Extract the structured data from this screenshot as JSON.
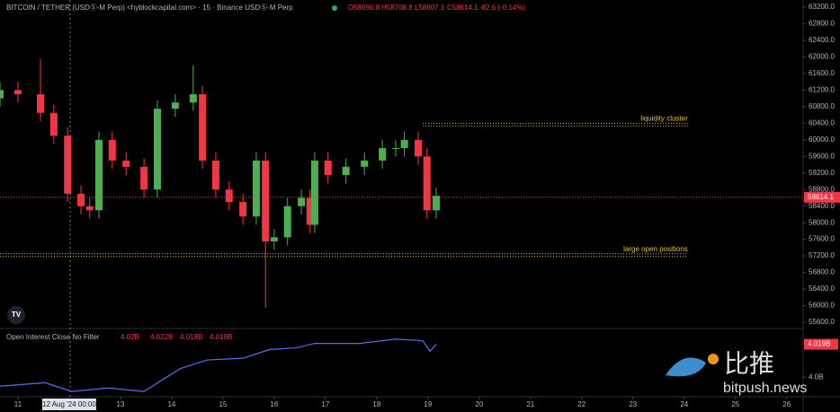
{
  "header": {
    "title": "BITCOIN / TETHER (USDⓈ-M Perp) <hyblockcapital.com> · 15 · Binance USDⓈ-M Perp",
    "open": "O58696.8",
    "high": "H58708.8",
    "low": "L58607.1",
    "close": "C58614.1",
    "change": "-82.6 (-0.14%)"
  },
  "watermark": {
    "cn": "比推",
    "site": "bitpush.news"
  },
  "chart_data": [
    {
      "type": "candlestick",
      "up_color": "#4caf50",
      "down_color": "#f23645",
      "x": [
        10.65,
        11.0,
        11.44,
        11.7,
        11.97,
        12.23,
        12.4,
        12.58,
        12.84,
        13.11,
        13.46,
        13.72,
        14.07,
        14.42,
        14.6,
        14.86,
        15.12,
        15.39,
        15.65,
        15.83,
        16.0,
        16.26,
        16.53,
        16.7,
        16.79,
        17.05,
        17.4,
        17.76,
        18.11,
        18.37,
        18.54,
        18.81,
        18.98,
        19.16
      ],
      "open": [
        61000,
        61200,
        61100,
        60650,
        60100,
        58700,
        58400,
        58300,
        60000,
        59500,
        59350,
        58800,
        60750,
        60900,
        61100,
        59500,
        58800,
        58500,
        58150,
        59500,
        57550,
        57650,
        58400,
        58600,
        57950,
        59500,
        59150,
        59350,
        59500,
        59800,
        59800,
        60000,
        59600,
        58300
      ],
      "high": [
        61400,
        61400,
        61950,
        60850,
        60300,
        58900,
        58600,
        60200,
        60200,
        59700,
        59550,
        60950,
        61100,
        61800,
        61300,
        59700,
        59000,
        58700,
        59700,
        59700,
        57850,
        58600,
        58800,
        58800,
        59700,
        59700,
        59550,
        59700,
        60000,
        60000,
        60200,
        60200,
        59800,
        58850
      ],
      "low": [
        60800,
        60900,
        60450,
        59900,
        58500,
        58200,
        58100,
        58100,
        59300,
        59150,
        58600,
        58600,
        60550,
        60700,
        59300,
        58600,
        58300,
        57950,
        57950,
        55950,
        57350,
        57450,
        58200,
        57750,
        57750,
        58950,
        58950,
        59150,
        59300,
        59600,
        59600,
        59400,
        58100,
        58100
      ],
      "close": [
        61200,
        61100,
        60650,
        60100,
        58700,
        58400,
        58300,
        60000,
        59500,
        59350,
        58800,
        60750,
        60900,
        61100,
        59500,
        58800,
        58500,
        58150,
        59500,
        57550,
        57650,
        58400,
        58600,
        57950,
        59500,
        59150,
        59350,
        59500,
        59800,
        59800,
        60000,
        59600,
        58300,
        58650
      ],
      "xlim": [
        10.65,
        26.32
      ],
      "xticks": [
        11,
        {
          "value": 12,
          "label": "12 Aug '24  00:00"
        },
        13,
        14,
        15,
        16,
        17,
        18,
        19,
        20,
        21,
        22,
        23,
        24,
        25,
        26
      ],
      "ylim": [
        55600,
        63200
      ],
      "yticks": [
        {
          "value": 63200,
          "label": "63200.0"
        },
        {
          "value": 62800,
          "label": "62800.0"
        },
        {
          "value": 62400,
          "label": "62400.0"
        },
        {
          "value": 62000,
          "label": "62000.0"
        },
        {
          "value": 61600,
          "label": "61600.0"
        },
        {
          "value": 61200,
          "label": "61200.0"
        },
        {
          "value": 60800,
          "label": "60800.0"
        },
        {
          "value": 60400,
          "label": "60400.0"
        },
        {
          "value": 60000,
          "label": "60000.0"
        },
        {
          "value": 59600,
          "label": "59600.0"
        },
        {
          "value": 59200,
          "label": "59200.0"
        },
        {
          "value": 58800,
          "label": "58800.0"
        },
        {
          "value": 58400,
          "label": "58400.0"
        },
        {
          "value": 58000,
          "label": "58000.0"
        },
        {
          "value": 57600,
          "label": "57600.0"
        },
        {
          "value": 57200,
          "label": "57200.0"
        },
        {
          "value": 56800,
          "label": "56800.0"
        },
        {
          "value": 56400,
          "label": "56400.0"
        },
        {
          "value": 56000,
          "label": "56000.0"
        },
        {
          "value": 55600,
          "label": "55600.0"
        }
      ],
      "last": 58614.1,
      "levels": [
        {
          "label": "liquidity cluster",
          "value": 60400,
          "x": [
            18.9,
            24.07
          ],
          "color": "#e6c229"
        },
        {
          "label": "large open positions",
          "value": 57250,
          "x": [
            10.65,
            24.07
          ],
          "color": "#e6c229"
        }
      ]
    },
    {
      "type": "line",
      "title": "Open Interest Close No Filter",
      "legend_values": [
        "4.02B",
        "4.022B",
        "4.018B",
        "4.018B"
      ],
      "series": [
        {
          "name": "Open Interest",
          "color": "#5b6cf0",
          "x": [
            10.65,
            11.53,
            12.05,
            12.76,
            13.46,
            14.16,
            14.69,
            15.39,
            15.91,
            16.44,
            16.79,
            17.67,
            18.37,
            18.9,
            19.04,
            19.16
          ],
          "values": [
            3.995,
            3.997,
            3.992,
            3.994,
            3.992,
            4.005,
            4.01,
            4.011,
            4.016,
            4.017,
            4.0195,
            4.0195,
            4.022,
            4.021,
            4.015,
            4.019
          ]
        }
      ],
      "ylim": [
        3.99,
        4.027
      ],
      "yticks": [
        {
          "value": 4.0,
          "label": "4.0B"
        }
      ],
      "last": {
        "value": 4.019,
        "label": "4.019B"
      }
    }
  ]
}
